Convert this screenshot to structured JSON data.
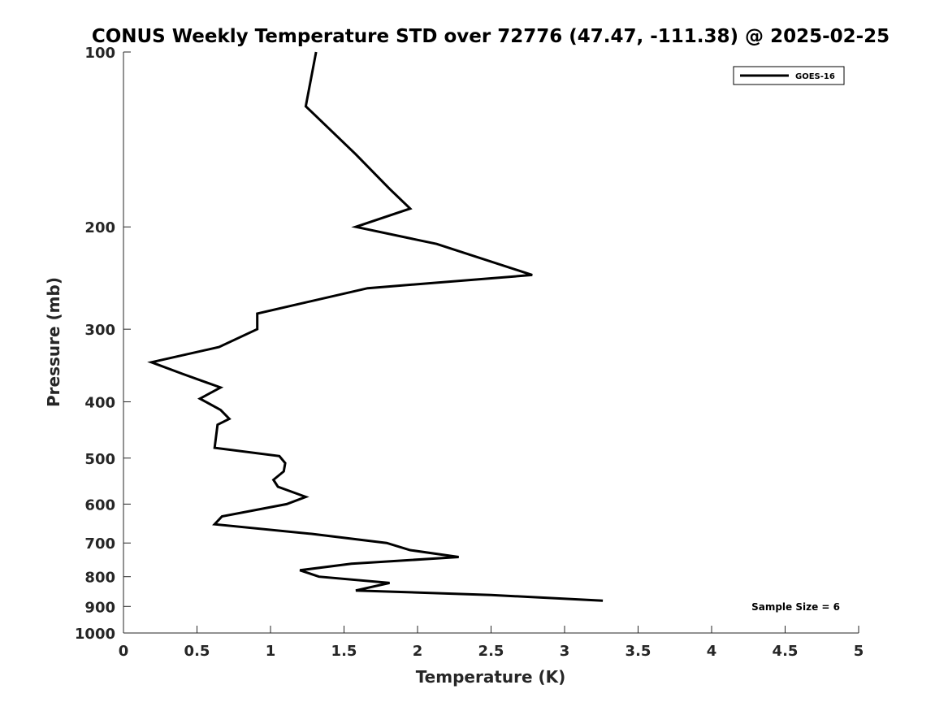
{
  "chart_data": {
    "type": "line",
    "title": "CONUS Weekly Temperature STD over 72776 (47.47, -111.38) @ 2025-02-25",
    "xlabel": "Temperature (K)",
    "ylabel": "Pressure (mb)",
    "xlim": [
      0,
      5
    ],
    "ylim": [
      100,
      1000
    ],
    "y_scale": "log",
    "y_reversed": true,
    "x_ticks": [
      "0",
      "0.5",
      "1",
      "1.5",
      "2",
      "2.5",
      "3",
      "3.5",
      "4",
      "4.5",
      "5"
    ],
    "y_ticks": [
      "100",
      "200",
      "300",
      "400",
      "500",
      "600",
      "700",
      "800",
      "900",
      "1000"
    ],
    "grid": false,
    "legend_position": "top-right",
    "series": [
      {
        "name": "GOES-16",
        "color": "#000000",
        "points": [
          {
            "x": 1.31,
            "p": 100
          },
          {
            "x": 1.24,
            "p": 124
          },
          {
            "x": 1.58,
            "p": 150
          },
          {
            "x": 1.81,
            "p": 172
          },
          {
            "x": 1.95,
            "p": 186
          },
          {
            "x": 1.58,
            "p": 200
          },
          {
            "x": 2.13,
            "p": 214
          },
          {
            "x": 2.78,
            "p": 242
          },
          {
            "x": 1.66,
            "p": 255
          },
          {
            "x": 0.91,
            "p": 282
          },
          {
            "x": 0.91,
            "p": 300
          },
          {
            "x": 0.65,
            "p": 322
          },
          {
            "x": 0.19,
            "p": 342
          },
          {
            "x": 0.4,
            "p": 358
          },
          {
            "x": 0.66,
            "p": 378
          },
          {
            "x": 0.52,
            "p": 395
          },
          {
            "x": 0.66,
            "p": 413
          },
          {
            "x": 0.72,
            "p": 428
          },
          {
            "x": 0.64,
            "p": 438
          },
          {
            "x": 0.62,
            "p": 480
          },
          {
            "x": 1.06,
            "p": 496
          },
          {
            "x": 1.1,
            "p": 510
          },
          {
            "x": 1.09,
            "p": 527
          },
          {
            "x": 1.02,
            "p": 545
          },
          {
            "x": 1.05,
            "p": 560
          },
          {
            "x": 1.24,
            "p": 583
          },
          {
            "x": 1.11,
            "p": 600
          },
          {
            "x": 0.67,
            "p": 630
          },
          {
            "x": 0.62,
            "p": 650
          },
          {
            "x": 1.28,
            "p": 675
          },
          {
            "x": 1.79,
            "p": 700
          },
          {
            "x": 1.95,
            "p": 720
          },
          {
            "x": 2.28,
            "p": 740
          },
          {
            "x": 1.55,
            "p": 760
          },
          {
            "x": 1.2,
            "p": 780
          },
          {
            "x": 1.33,
            "p": 800
          },
          {
            "x": 1.81,
            "p": 820
          },
          {
            "x": 1.58,
            "p": 845
          },
          {
            "x": 2.5,
            "p": 860
          },
          {
            "x": 3.26,
            "p": 880
          }
        ]
      }
    ],
    "annotations": [
      "Sample Size = 6"
    ]
  }
}
